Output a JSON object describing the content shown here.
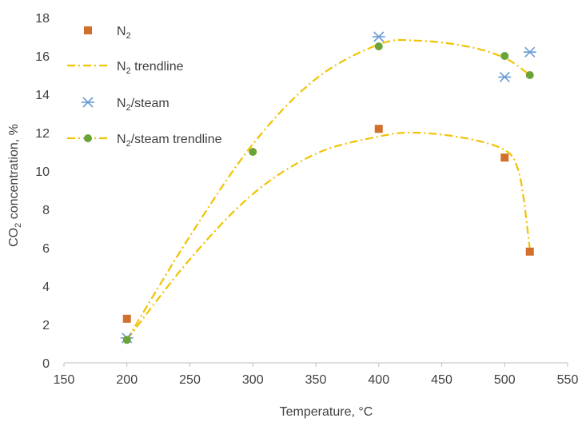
{
  "chart_data": {
    "type": "scatter",
    "title": "",
    "xlabel": "Temperature, °C",
    "ylabel": {
      "main": "CO",
      "sub": "2",
      "rest": " concentration, %"
    },
    "xlim": [
      150,
      550
    ],
    "ylim": [
      0,
      18
    ],
    "xticks": [
      150,
      200,
      250,
      300,
      350,
      400,
      450,
      500,
      550
    ],
    "yticks": [
      0,
      2,
      4,
      6,
      8,
      10,
      12,
      14,
      16,
      18
    ],
    "grid": false,
    "legend_position": "top-left",
    "series": [
      {
        "name": {
          "main": "N",
          "sub": "2",
          "rest": ""
        },
        "marker": "square",
        "color": "#d0702c",
        "x": [
          200,
          400,
          500,
          520
        ],
        "y": [
          2.3,
          12.2,
          10.7,
          5.8
        ]
      },
      {
        "name": {
          "main": "N",
          "sub": "2",
          "rest": " trendline"
        },
        "type": "trendline",
        "color": "#f2c200",
        "x": [
          200,
          250,
          300,
          350,
          400,
          430,
          470,
          500,
          510,
          515,
          520
        ],
        "y": [
          1.2,
          5.4,
          8.8,
          10.9,
          11.8,
          12.0,
          11.7,
          11.1,
          10.2,
          8.6,
          5.9
        ]
      },
      {
        "name": {
          "main": "N",
          "sub": "2",
          "rest": "/steam"
        },
        "marker": "asterisk",
        "color": "#6a9bd3",
        "x": [
          200,
          400,
          500,
          520
        ],
        "y": [
          1.3,
          17.0,
          14.9,
          16.2
        ]
      },
      {
        "name": {
          "main": "N",
          "sub": "2",
          "rest": "/steam trendline"
        },
        "type": "trendline",
        "color": "#f2c200",
        "marker": "circle",
        "marker_color": "#6aa338",
        "x": [
          200,
          250,
          300,
          350,
          400,
          430,
          470,
          500,
          520
        ],
        "y": [
          1.2,
          6.6,
          11.4,
          14.8,
          16.6,
          16.8,
          16.5,
          15.9,
          15.0
        ]
      },
      {
        "name": "",
        "marker": "circle",
        "color": "#6aa338",
        "x": [
          200,
          300,
          400,
          500,
          520
        ],
        "y": [
          1.2,
          11.0,
          16.5,
          16.0,
          15.0
        ]
      }
    ]
  }
}
